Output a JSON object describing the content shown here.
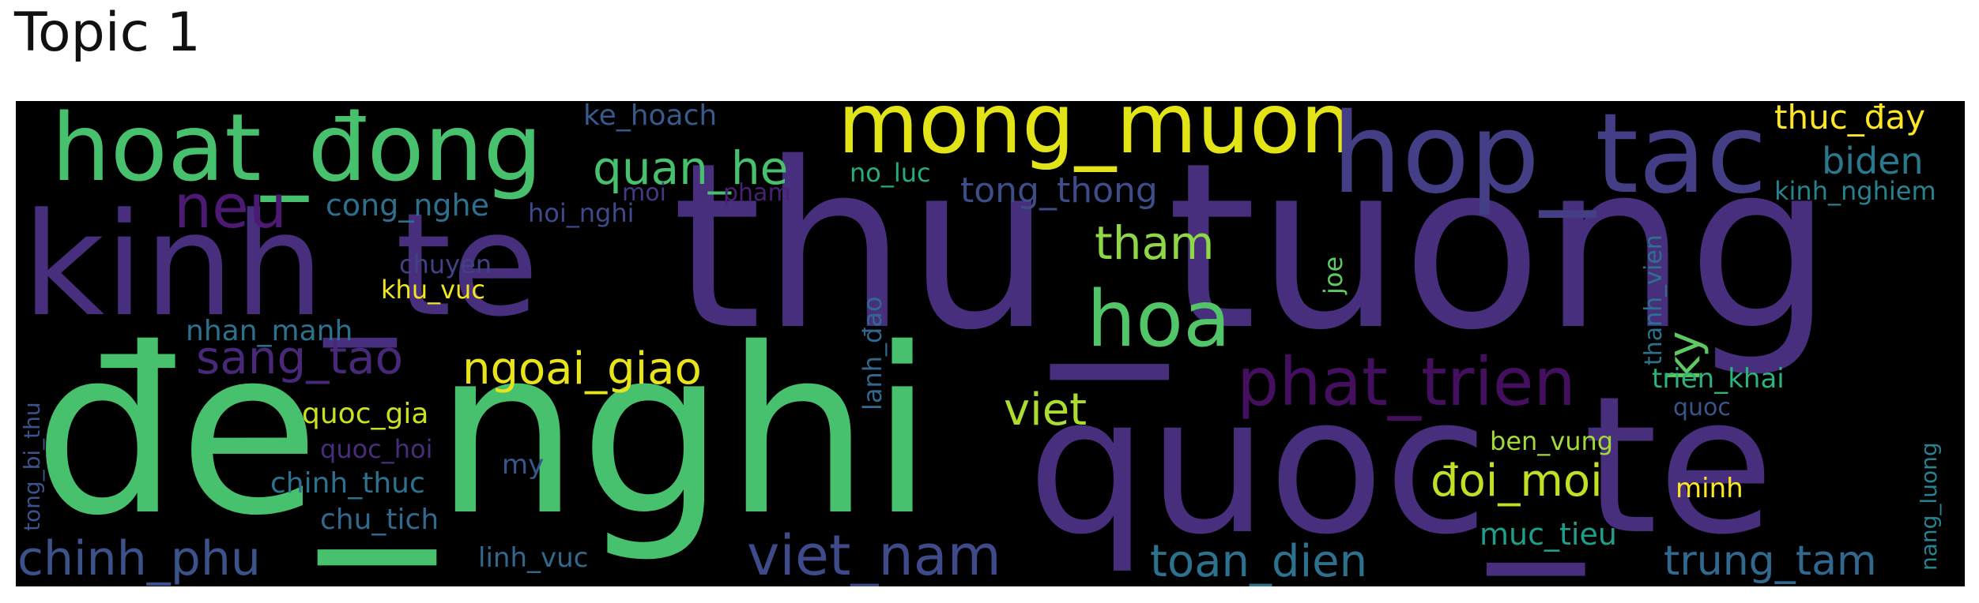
{
  "title": "Topic 1",
  "palette": {
    "purple_dark": "#4d1a73",
    "purple": "#472f7d",
    "indigo": "#3e4989",
    "blue": "#31688e",
    "teal": "#26828e",
    "sea": "#1f9e89",
    "green": "#35b779",
    "green_bright": "#48c16e",
    "lime": "#8fd744",
    "yellow_green": "#b5de2b",
    "yellow": "#fde725"
  },
  "words": [
    {
      "text": "thu_tuong",
      "color": "#472f7d"
    },
    {
      "text": "đe_nghi",
      "color": "#48c16e"
    },
    {
      "text": "kinh_te",
      "color": "#472f7d"
    },
    {
      "text": "quoc_te",
      "color": "#472f7d"
    },
    {
      "text": "hoat_đong",
      "color": "#48c16e"
    },
    {
      "text": "mong_muon",
      "color": "#e3e418"
    },
    {
      "text": "hop_tac",
      "color": "#433e85"
    },
    {
      "text": "hoa",
      "color": "#52c569"
    },
    {
      "text": "phat_trien",
      "color": "#440f5f"
    },
    {
      "text": "viet_nam",
      "color": "#3e4a89"
    },
    {
      "text": "neu",
      "color": "#4d1a73"
    },
    {
      "text": "quan_he",
      "color": "#48c16e"
    },
    {
      "text": "sang_tao",
      "color": "#482878"
    },
    {
      "text": "ngoai_giao",
      "color": "#e8e419"
    },
    {
      "text": "tham",
      "color": "#8fd744"
    },
    {
      "text": "chinh_phu",
      "color": "#3b528b"
    },
    {
      "text": "toan_dien",
      "color": "#2c728e"
    },
    {
      "text": "trung_tam",
      "color": "#31688e"
    },
    {
      "text": "đoi_moi",
      "color": "#c2df23"
    },
    {
      "text": "viet",
      "color": "#addc30"
    },
    {
      "text": "biden",
      "color": "#2a788e"
    },
    {
      "text": "thuc_đay",
      "color": "#fde725"
    },
    {
      "text": "tong_thong",
      "color": "#3e4c8a"
    },
    {
      "text": "ky",
      "color": "#5ec962"
    },
    {
      "text": "cong_nghe",
      "color": "#2e6f8e"
    },
    {
      "text": "ke_hoach",
      "color": "#38598c"
    },
    {
      "text": "kinh_nghiem",
      "color": "#26828e"
    },
    {
      "text": "nhan_manh",
      "color": "#2c728e"
    },
    {
      "text": "quoc_gia",
      "color": "#c8e020"
    },
    {
      "text": "chinh_thuc",
      "color": "#2c728e"
    },
    {
      "text": "chu_tich",
      "color": "#31688e"
    },
    {
      "text": "muc_tieu",
      "color": "#1f9e89"
    },
    {
      "text": "ben_vung",
      "color": "#a2da37"
    },
    {
      "text": "minh",
      "color": "#fde725"
    },
    {
      "text": "trien_khai",
      "color": "#2db27d"
    },
    {
      "text": "no_luc",
      "color": "#25ab82"
    },
    {
      "text": "hoi_nghi",
      "color": "#3e4a89"
    },
    {
      "text": "moi",
      "color": "#443a83"
    },
    {
      "text": "pham",
      "color": "#482173"
    },
    {
      "text": "chuyen",
      "color": "#424086"
    },
    {
      "text": "khu_vuc",
      "color": "#f4e61e"
    },
    {
      "text": "quoc_hoi",
      "color": "#472d7b"
    },
    {
      "text": "my",
      "color": "#39568c"
    },
    {
      "text": "linh_vuc",
      "color": "#31688e"
    },
    {
      "text": "lanh_đao",
      "color": "#31688e"
    },
    {
      "text": "joe",
      "color": "#5ec962"
    },
    {
      "text": "thanh_vien",
      "color": "#2c728e"
    },
    {
      "text": "quoc",
      "color": "#3b528b"
    },
    {
      "text": "nang_luong",
      "color": "#26828e"
    },
    {
      "text": "tong_bi_thu",
      "color": "#3b528b"
    }
  ]
}
